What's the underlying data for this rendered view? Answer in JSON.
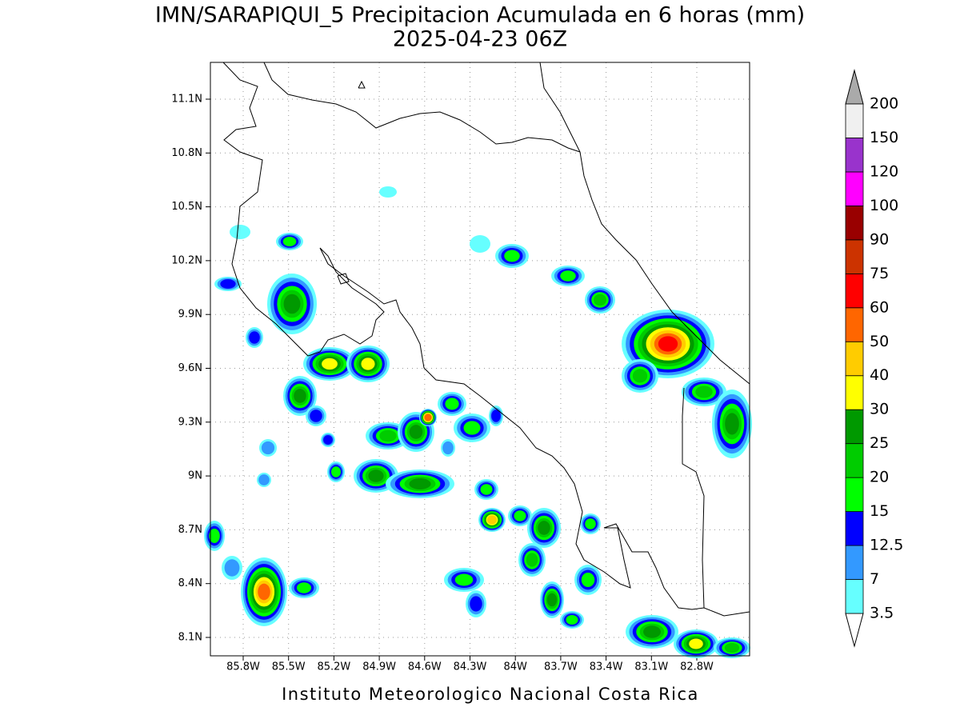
{
  "title": "IMN/SARAPIQUI_5 Precipitacion Acumulada en 6 horas (mm)",
  "subtitle": "2025-04-23 06Z",
  "lat_labels": [
    "11.1N",
    "10.8N",
    "10.5N",
    "10.2N",
    "9.9N",
    "9.6N",
    "9.3N",
    "9N",
    "8.7N",
    "8.4N",
    "8.1N"
  ],
  "lon_labels": [
    "85.8W",
    "85.5W",
    "85.2W",
    "84.9W",
    "84.6W",
    "84.3W",
    "84W",
    "83.7W",
    "83.4W",
    "83.1W",
    "82.8W"
  ],
  "colorbar": {
    "labels": [
      "3.5",
      "7",
      "12.5",
      "15",
      "20",
      "25",
      "30",
      "40",
      "50",
      "60",
      "75",
      "90",
      "100",
      "120",
      "150",
      "200"
    ],
    "colors": [
      "#66ffff",
      "#3399ff",
      "#0000ff",
      "#00ff00",
      "#00cc00",
      "#009900",
      "#ffff00",
      "#ffcc00",
      "#ff6600",
      "#ff0000",
      "#cc3300",
      "#990000",
      "#ff00ff",
      "#9933cc",
      "#f0f0f0"
    ],
    "over_color": "#aaaaaa",
    "under_color": "#ffffff"
  },
  "footer": "Instituto Meteorologico Nacional Costa Rica"
}
